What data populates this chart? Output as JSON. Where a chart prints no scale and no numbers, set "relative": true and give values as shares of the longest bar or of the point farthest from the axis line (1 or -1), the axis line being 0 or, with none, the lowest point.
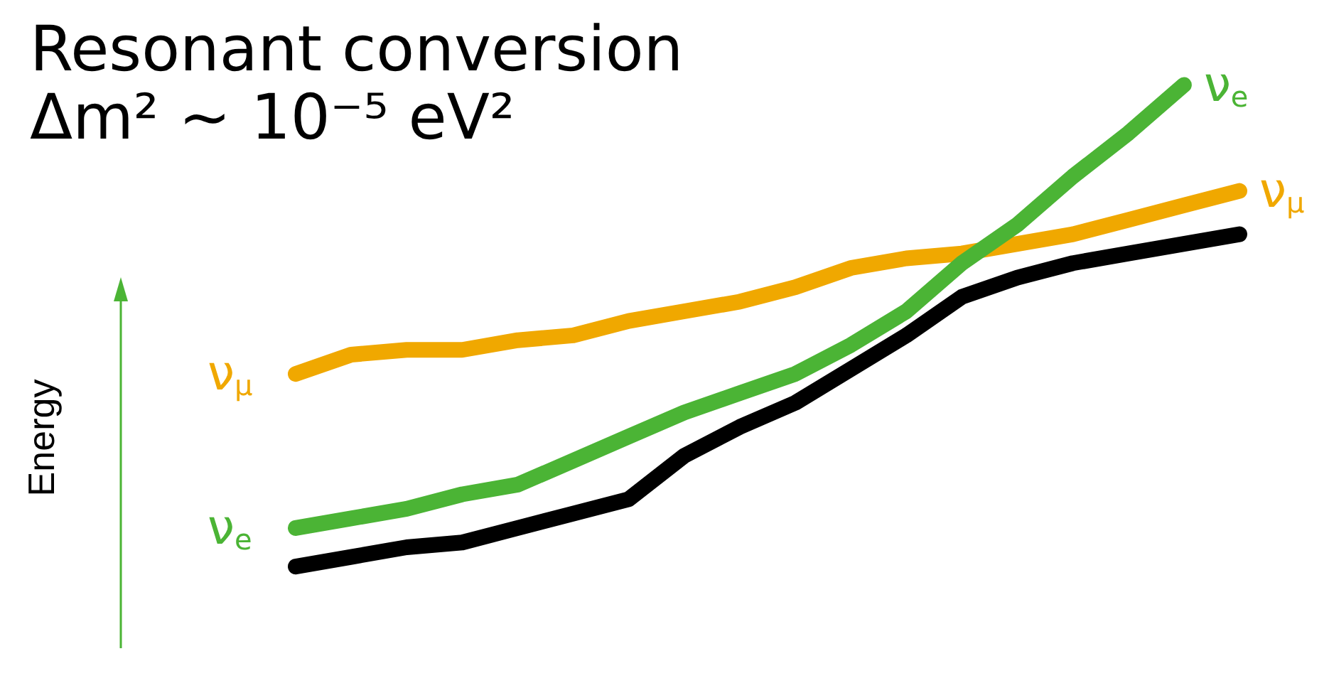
{
  "chart_data": {
    "type": "line",
    "title": "Resonant conversion",
    "subtitle": "Δm² ~ 10⁻⁵ eV²",
    "relative": true,
    "legend": false,
    "grid": false,
    "marker": "none",
    "annotations": [
      "Energy",
      "ν$_{μ}$",
      "ν$_{e}$"
    ],
    "categories": [
      null,
      null,
      null,
      null,
      null,
      null,
      null,
      null,
      null,
      null,
      null,
      null,
      null,
      null,
      null,
      null,
      null,
      null
    ],
    "series": [
      {
        "name": "ν$_{μ}$",
        "color": "#f0a800",
        "values": [
          0.4,
          0.44,
          0.45,
          0.45,
          0.47,
          0.48,
          0.51,
          0.53,
          0.55,
          0.58,
          0.62,
          0.64,
          0.65,
          0.67,
          0.69,
          0.72,
          0.75,
          0.78
        ]
      },
      {
        "name": "ν$_{e}$",
        "color": "#4bb435",
        "values": [
          0.08,
          0.1,
          0.12,
          0.15,
          0.17,
          0.22,
          0.27,
          0.32,
          0.36,
          0.4,
          0.46,
          0.53,
          0.63,
          0.71,
          0.81,
          0.9,
          1,
          null
        ]
      },
      {
        "color": "#000000",
        "values": [
          0,
          0.02,
          0.04,
          0.05,
          0.08,
          0.11,
          0.14,
          0.23,
          0.29,
          0.34,
          0.41,
          0.48,
          0.56,
          0.6,
          0.63,
          0.65,
          0.67,
          0.69
        ]
      }
    ]
  }
}
